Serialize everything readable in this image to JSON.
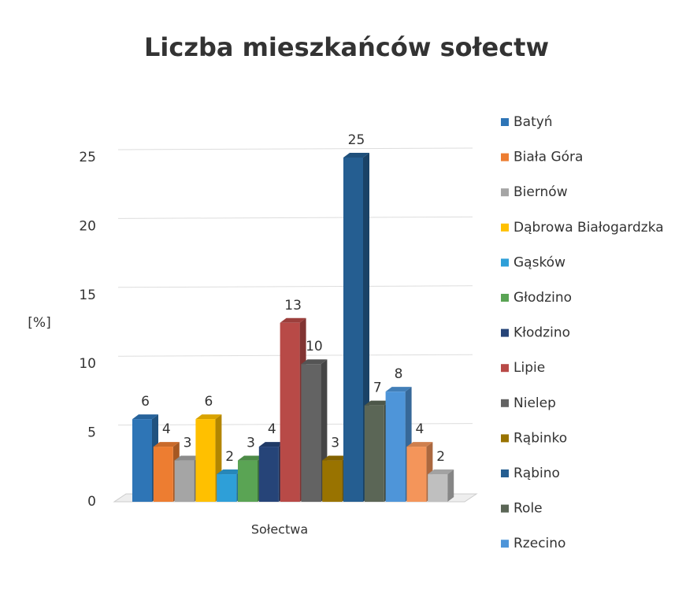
{
  "chart_data": {
    "type": "bar3d",
    "title": "Liczba mieszkańców sołectw",
    "y_label": "[%]",
    "x_label": "Sołectwa",
    "categories": [
      "Batyń",
      "Biała Góra",
      "Biernów",
      "Dąbrowa Białogardzka",
      "Gąsków",
      "Głodzino",
      "Kłodzino",
      "Lipie",
      "Nielep",
      "Rąbinko",
      "Rąbino",
      "Role",
      "Rzecino",
      null,
      null
    ],
    "values": [
      6,
      4,
      3,
      6,
      2,
      3,
      4,
      13,
      10,
      3,
      25,
      7,
      8,
      4,
      2
    ],
    "colors": [
      "#2e75b6",
      "#ed7d31",
      "#a5a5a5",
      "#ffc000",
      "#2e9fd8",
      "#5aa454",
      "#264478",
      "#b84a47",
      "#636363",
      "#997300",
      "#255e91",
      "#5b6656",
      "#4e95d9",
      "#f4955a",
      "#bfbfbf"
    ],
    "ylim": [
      0,
      25
    ],
    "yticks": [
      0,
      5,
      10,
      15,
      20,
      25
    ],
    "grid": true,
    "legend": "right"
  }
}
